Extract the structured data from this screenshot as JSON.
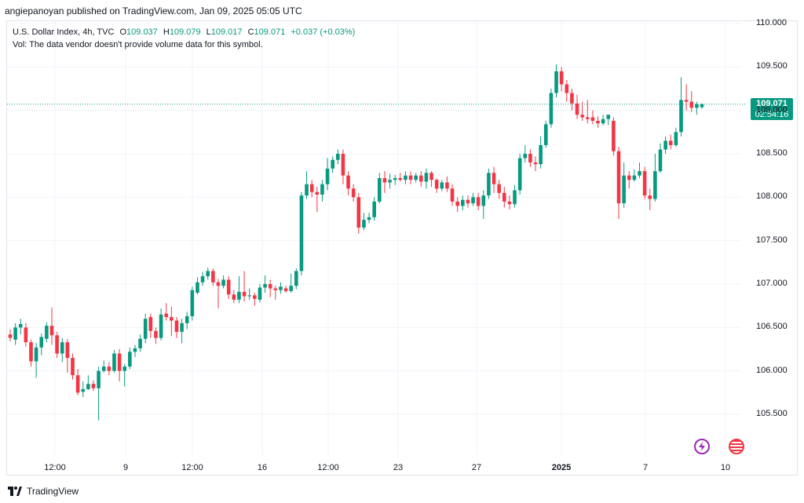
{
  "header": {
    "published": "angiepanoyan published on TradingView.com, Jan 09, 2025 05:05 UTC"
  },
  "legend": {
    "symbol": "U.S. Dollar Index, 4h, TVC",
    "open_label": "O",
    "open": "109.037",
    "high_label": "H",
    "high": "109.079",
    "low_label": "L",
    "low": "109.017",
    "close_label": "C",
    "close": "109.071",
    "change": "+0.037 (+0.03%)",
    "volume_note": "Vol: The data vendor doesn't provide volume data for this symbol."
  },
  "price_tag": {
    "price": "109.071",
    "countdown": "02:54:16"
  },
  "footer": {
    "brand": "TradingView"
  },
  "icons": {
    "event_1": "lightning-icon",
    "event_2": "us-flag-icon",
    "logo": "tradingview-logo-icon"
  },
  "colors": {
    "up": "#089981",
    "down": "#f23645",
    "grid": "#f0f3fa",
    "price_line": "#089981"
  },
  "chart_data": {
    "type": "candlestick",
    "title": "U.S. Dollar Index, 4h, TVC",
    "ylim": [
      105.0,
      110.25
    ],
    "y_ticks": [
      "110.000",
      "109.500",
      "109.000",
      "108.500",
      "108.000",
      "107.500",
      "107.000",
      "106.500",
      "106.000",
      "105.500"
    ],
    "x_ticks": [
      "12:00",
      "9",
      "12:00",
      "16",
      "12:00",
      "23",
      "27",
      "2025",
      "7",
      "10"
    ],
    "last_price": 109.071,
    "grid": true,
    "candles": [
      [
        106.42,
        106.38,
        106.48,
        106.34
      ],
      [
        106.36,
        106.5,
        106.55,
        106.3
      ],
      [
        106.5,
        106.54,
        106.6,
        106.42
      ],
      [
        106.5,
        106.33,
        106.55,
        106.28
      ],
      [
        106.33,
        106.11,
        106.36,
        106.05
      ],
      [
        106.11,
        106.27,
        106.32,
        105.92
      ],
      [
        106.27,
        106.39,
        106.43,
        106.18
      ],
      [
        106.37,
        106.52,
        106.56,
        106.33
      ],
      [
        106.52,
        106.41,
        106.73,
        106.3
      ],
      [
        106.41,
        106.2,
        106.45,
        106.15
      ],
      [
        106.2,
        106.33,
        106.38,
        106.1
      ],
      [
        106.33,
        106.15,
        106.37,
        105.98
      ],
      [
        106.15,
        105.95,
        106.2,
        105.9
      ],
      [
        105.95,
        105.75,
        106.02,
        105.72
      ],
      [
        105.76,
        105.79,
        105.88,
        105.7
      ],
      [
        105.79,
        105.85,
        105.95,
        105.78
      ],
      [
        105.85,
        105.8,
        105.89,
        105.77
      ],
      [
        105.8,
        106.0,
        106.05,
        105.43
      ],
      [
        106.0,
        106.05,
        106.12,
        105.98
      ],
      [
        106.05,
        106.0,
        106.1,
        105.95
      ],
      [
        106.0,
        106.2,
        106.24,
        105.98
      ],
      [
        106.2,
        106.0,
        106.25,
        105.88
      ],
      [
        106.0,
        106.05,
        106.08,
        105.82
      ],
      [
        106.05,
        106.22,
        106.27,
        106.02
      ],
      [
        106.22,
        106.26,
        106.3,
        106.16
      ],
      [
        106.26,
        106.37,
        106.42,
        106.22
      ],
      [
        106.37,
        106.6,
        106.66,
        106.32
      ],
      [
        106.62,
        106.46,
        106.66,
        106.38
      ],
      [
        106.46,
        106.38,
        106.5,
        106.31
      ],
      [
        106.38,
        106.65,
        106.72,
        106.35
      ],
      [
        106.66,
        106.62,
        106.78,
        106.58
      ],
      [
        106.62,
        106.58,
        106.74,
        106.4
      ],
      [
        106.58,
        106.45,
        106.62,
        106.38
      ],
      [
        106.45,
        106.55,
        106.6,
        106.32
      ],
      [
        106.55,
        106.63,
        106.68,
        106.48
      ],
      [
        106.63,
        106.93,
        106.97,
        106.58
      ],
      [
        106.9,
        107.02,
        107.08,
        106.88
      ],
      [
        107.02,
        107.09,
        107.14,
        106.98
      ],
      [
        107.09,
        107.15,
        107.19,
        107.05
      ],
      [
        107.15,
        107.02,
        107.18,
        106.98
      ],
      [
        107.02,
        106.98,
        107.06,
        106.72
      ],
      [
        106.98,
        107.05,
        107.1,
        106.95
      ],
      [
        107.05,
        106.88,
        107.09,
        106.83
      ],
      [
        106.88,
        106.82,
        106.93,
        106.78
      ],
      [
        106.82,
        106.91,
        107.09,
        106.78
      ],
      [
        106.91,
        106.86,
        107.15,
        106.8
      ],
      [
        106.86,
        106.87,
        106.95,
        106.82
      ],
      [
        106.87,
        106.83,
        106.9,
        106.75
      ],
      [
        106.82,
        106.96,
        107.0,
        106.79
      ],
      [
        106.96,
        107.0,
        107.1,
        106.9
      ],
      [
        107.0,
        106.95,
        107.05,
        106.85
      ],
      [
        106.95,
        106.93,
        106.98,
        106.82
      ],
      [
        106.93,
        106.97,
        107.02,
        106.89
      ],
      [
        106.95,
        106.92,
        106.98,
        106.9
      ],
      [
        106.92,
        106.98,
        107.12,
        106.9
      ],
      [
        106.98,
        107.15,
        107.18,
        106.94
      ],
      [
        107.15,
        108.02,
        108.06,
        107.1
      ],
      [
        108.02,
        108.15,
        108.3,
        107.98
      ],
      [
        108.15,
        108.06,
        108.2,
        108.0
      ],
      [
        108.06,
        108.03,
        108.12,
        107.83
      ],
      [
        108.03,
        108.15,
        108.2,
        107.95
      ],
      [
        108.15,
        108.33,
        108.45,
        108.08
      ],
      [
        108.33,
        108.43,
        108.47,
        108.28
      ],
      [
        108.43,
        108.5,
        108.55,
        108.38
      ],
      [
        108.5,
        108.25,
        108.55,
        108.15
      ],
      [
        108.25,
        108.1,
        108.3,
        108.02
      ],
      [
        108.1,
        108.0,
        108.15,
        107.95
      ],
      [
        108.0,
        107.65,
        108.05,
        107.58
      ],
      [
        107.65,
        107.74,
        107.82,
        107.62
      ],
      [
        107.74,
        107.77,
        107.82,
        107.7
      ],
      [
        107.77,
        107.95,
        108.0,
        107.73
      ],
      [
        107.95,
        108.22,
        108.28,
        107.93
      ],
      [
        108.22,
        108.17,
        108.3,
        108.05
      ],
      [
        108.17,
        108.2,
        108.27,
        108.1
      ],
      [
        108.2,
        108.22,
        108.26,
        108.14
      ],
      [
        108.22,
        108.2,
        108.28,
        108.18
      ],
      [
        108.2,
        108.25,
        108.3,
        108.15
      ],
      [
        108.25,
        108.2,
        108.3,
        108.15
      ],
      [
        108.2,
        108.25,
        108.28,
        108.17
      ],
      [
        108.25,
        108.18,
        108.3,
        108.12
      ],
      [
        108.18,
        108.28,
        108.33,
        108.1
      ],
      [
        108.28,
        108.2,
        108.3,
        108.12
      ],
      [
        108.2,
        108.1,
        108.22,
        108.05
      ],
      [
        108.1,
        108.17,
        108.2,
        108.07
      ],
      [
        108.17,
        108.1,
        108.24,
        108.06
      ],
      [
        108.1,
        107.95,
        108.15,
        107.9
      ],
      [
        107.95,
        107.9,
        108.0,
        107.83
      ],
      [
        107.9,
        107.97,
        108.02,
        107.85
      ],
      [
        107.97,
        107.93,
        108.02,
        107.88
      ],
      [
        107.93,
        108.0,
        108.05,
        107.9
      ],
      [
        108.0,
        107.9,
        108.05,
        107.85
      ],
      [
        107.9,
        108.02,
        108.08,
        107.75
      ],
      [
        108.02,
        108.28,
        108.33,
        107.98
      ],
      [
        108.28,
        108.15,
        108.35,
        108.05
      ],
      [
        108.15,
        108.05,
        108.2,
        107.98
      ],
      [
        108.05,
        107.95,
        108.12,
        107.88
      ],
      [
        107.95,
        107.92,
        108.02,
        107.86
      ],
      [
        107.92,
        108.08,
        108.14,
        107.88
      ],
      [
        108.08,
        108.45,
        108.5,
        108.03
      ],
      [
        108.45,
        108.5,
        108.6,
        108.4
      ],
      [
        108.5,
        108.4,
        108.55,
        108.35
      ],
      [
        108.4,
        108.38,
        108.47,
        108.3
      ],
      [
        108.38,
        108.6,
        108.7,
        108.33
      ],
      [
        108.6,
        108.84,
        108.88,
        108.57
      ],
      [
        108.84,
        109.2,
        109.25,
        108.8
      ],
      [
        109.2,
        109.45,
        109.53,
        109.15
      ],
      [
        109.45,
        109.3,
        109.5,
        109.22
      ],
      [
        109.3,
        109.2,
        109.35,
        109.1
      ],
      [
        109.2,
        109.08,
        109.25,
        109.0
      ],
      [
        109.08,
        108.95,
        109.18,
        108.9
      ],
      [
        108.95,
        108.92,
        109.1,
        108.88
      ],
      [
        108.92,
        108.9,
        109.12,
        108.85
      ],
      [
        108.92,
        108.88,
        109.0,
        108.84
      ],
      [
        108.88,
        108.85,
        108.93,
        108.8
      ],
      [
        108.85,
        108.9,
        108.95,
        108.83
      ],
      [
        108.9,
        108.95,
        108.9,
        108.83
      ],
      [
        108.88,
        108.53,
        108.92,
        108.48
      ],
      [
        108.53,
        107.93,
        108.58,
        107.75
      ],
      [
        107.93,
        108.25,
        108.4,
        107.88
      ],
      [
        108.25,
        108.2,
        108.3,
        108.1
      ],
      [
        108.2,
        108.25,
        108.32,
        108.18
      ],
      [
        108.25,
        108.3,
        108.4,
        108.22
      ],
      [
        108.3,
        108.02,
        108.35,
        107.98
      ],
      [
        108.02,
        107.98,
        108.1,
        107.85
      ],
      [
        107.98,
        108.3,
        108.5,
        107.95
      ],
      [
        108.3,
        108.55,
        108.62,
        108.28
      ],
      [
        108.55,
        108.65,
        108.7,
        108.5
      ],
      [
        108.65,
        108.6,
        108.72,
        108.55
      ],
      [
        108.6,
        108.75,
        108.8,
        108.58
      ],
      [
        108.75,
        109.12,
        109.38,
        108.7
      ],
      [
        109.12,
        109.1,
        109.3,
        109.0
      ],
      [
        109.1,
        109.03,
        109.22,
        108.98
      ],
      [
        109.03,
        109.07,
        109.1,
        108.95
      ],
      [
        109.037,
        109.071,
        109.079,
        109.017
      ]
    ]
  }
}
